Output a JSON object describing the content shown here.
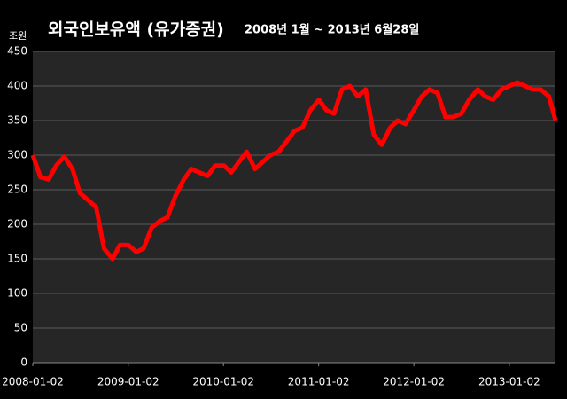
{
  "chart_data": {
    "type": "line",
    "title": "외국인보유액 (유가증권)",
    "subtitle": "2008년 1월 ~ 2013년 6월28일",
    "y_label": "조원",
    "x": [
      "2008-01-02",
      "2008-02-01",
      "2008-03-03",
      "2008-04-01",
      "2008-05-02",
      "2008-06-02",
      "2008-07-01",
      "2008-08-01",
      "2008-09-01",
      "2008-10-01",
      "2008-11-03",
      "2008-12-01",
      "2009-01-02",
      "2009-02-02",
      "2009-03-02",
      "2009-04-01",
      "2009-05-04",
      "2009-06-01",
      "2009-07-01",
      "2009-08-03",
      "2009-09-01",
      "2009-10-01",
      "2009-11-02",
      "2009-12-01",
      "2010-01-04",
      "2010-02-01",
      "2010-03-02",
      "2010-04-01",
      "2010-05-03",
      "2010-06-01",
      "2010-07-01",
      "2010-08-02",
      "2010-09-01",
      "2010-10-01",
      "2010-11-01",
      "2010-12-01",
      "2011-01-03",
      "2011-02-01",
      "2011-03-02",
      "2011-04-01",
      "2011-05-02",
      "2011-06-01",
      "2011-07-01",
      "2011-08-01",
      "2011-09-01",
      "2011-10-04",
      "2011-11-01",
      "2011-12-01",
      "2012-01-02",
      "2012-02-01",
      "2012-03-02",
      "2012-04-02",
      "2012-05-02",
      "2012-06-01",
      "2012-07-02",
      "2012-08-01",
      "2012-09-03",
      "2012-10-02",
      "2012-11-01",
      "2012-12-03",
      "2013-01-02",
      "2013-02-01",
      "2013-03-04",
      "2013-04-01",
      "2013-05-02",
      "2013-06-03",
      "2013-06-28"
    ],
    "series": [
      {
        "color": "#ff0000",
        "values": [
          300,
          268,
          265,
          285,
          298,
          280,
          245,
          235,
          225,
          165,
          150,
          170,
          170,
          160,
          165,
          195,
          205,
          210,
          240,
          265,
          280,
          275,
          270,
          285,
          285,
          275,
          290,
          305,
          280,
          290,
          300,
          305,
          320,
          335,
          340,
          365,
          380,
          365,
          360,
          395,
          400,
          385,
          395,
          330,
          315,
          340,
          350,
          345,
          365,
          385,
          395,
          390,
          355,
          355,
          360,
          380,
          395,
          385,
          380,
          395,
          400,
          405,
          400,
          395,
          395,
          385,
          350
        ]
      }
    ],
    "xlim": [
      "2008-01-02",
      "2013-06-28"
    ],
    "xticks": [
      "2008-01-02",
      "2009-01-02",
      "2010-01-02",
      "2011-01-02",
      "2012-01-02",
      "2013-01-02"
    ],
    "ylim": [
      0,
      450
    ],
    "yticks": [
      0,
      50,
      100,
      150,
      200,
      250,
      300,
      350,
      400,
      450
    ],
    "grid": true
  }
}
